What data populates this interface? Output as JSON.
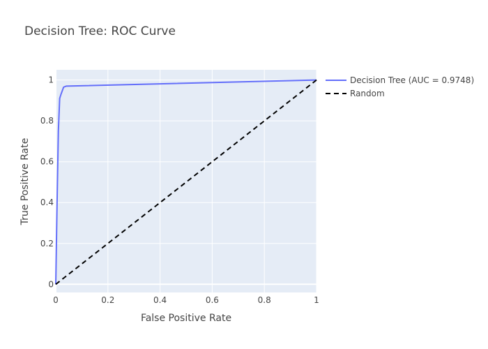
{
  "chart_data": {
    "type": "line",
    "title": "Decision Tree: ROC Curve",
    "xlabel": "False Positive Rate",
    "ylabel": "True Positive Rate",
    "xlim": [
      0,
      1
    ],
    "ylim": [
      -0.04,
      1.05
    ],
    "x_ticks": [
      0,
      0.2,
      0.4,
      0.6,
      0.8,
      1
    ],
    "x_tick_labels": [
      "0",
      "0.2",
      "0.4",
      "0.6",
      "0.8",
      "1"
    ],
    "y_ticks": [
      0,
      0.2,
      0.4,
      0.6,
      0.8,
      1
    ],
    "y_tick_labels": [
      "0",
      "0.2",
      "0.4",
      "0.6",
      "0.8",
      "1"
    ],
    "grid": true,
    "legend_position": "top-right outside",
    "plot_background": "#e5ecf6",
    "series": [
      {
        "name": "Decision Tree (AUC = 0.9748)",
        "color": "#636efa",
        "dash": "solid",
        "x": [
          0,
          0.005,
          0.01,
          0.015,
          0.02,
          0.03,
          0.04,
          1
        ],
        "y": [
          0,
          0.4,
          0.75,
          0.91,
          0.93,
          0.965,
          0.97,
          1
        ]
      },
      {
        "name": "Random",
        "color": "#000000",
        "dash": "dashed",
        "x": [
          0,
          1
        ],
        "y": [
          0,
          1
        ]
      }
    ]
  }
}
